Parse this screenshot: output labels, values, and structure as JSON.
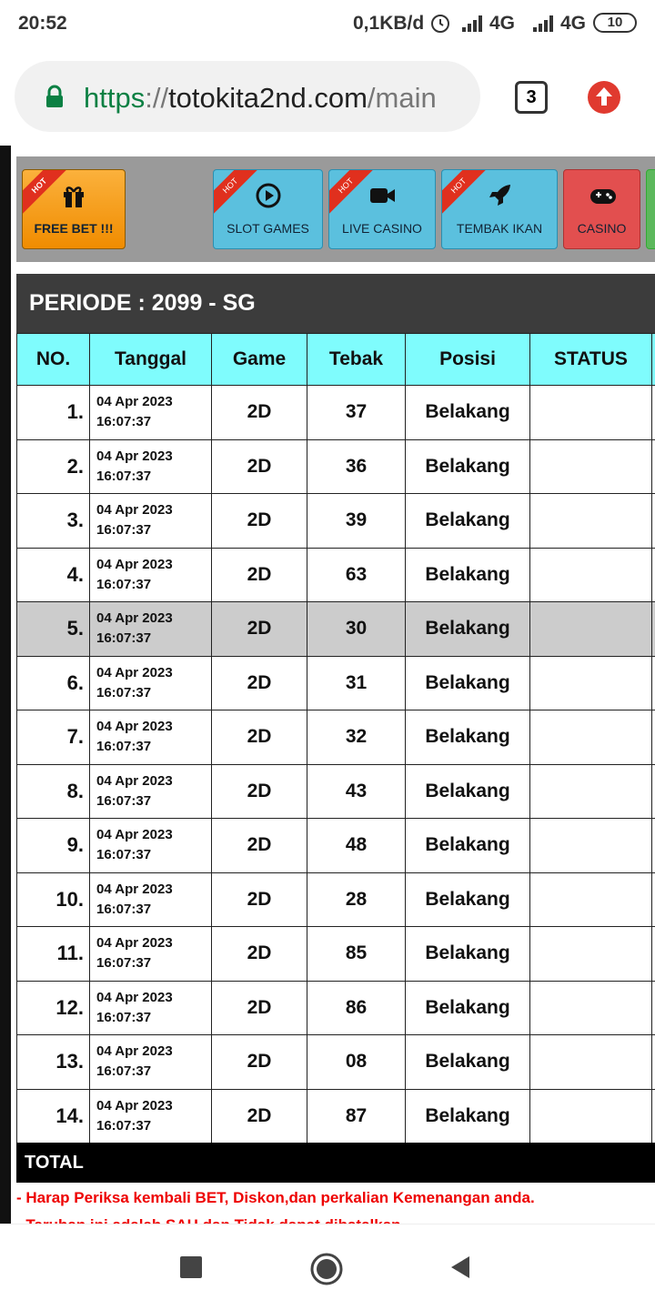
{
  "status_bar": {
    "time": "20:52",
    "speed": "0,1KB/d",
    "network_1": "4G",
    "network_2": "4G",
    "battery": "10"
  },
  "browser": {
    "url_scheme": "https",
    "url_separator": "://",
    "url_host": "totokita2nd.com",
    "url_path": "/main",
    "tab_count": "3"
  },
  "nav": {
    "badge": "HOT",
    "buttons": [
      {
        "label": "FREE BET !!!",
        "hot": true
      },
      {
        "label": "SLOT GAMES",
        "hot": true
      },
      {
        "label": "LIVE CASINO",
        "hot": true
      },
      {
        "label": "TEMBAK IKAN",
        "hot": true
      },
      {
        "label": "CASINO",
        "hot": false
      }
    ]
  },
  "table": {
    "title": "PERIODE : 2099 - SG",
    "headers": [
      "NO.",
      "Tanggal",
      "Game",
      "Tebak",
      "Posisi",
      "STATUS"
    ],
    "rows": [
      {
        "no": "1.",
        "date": "04 Apr 2023",
        "time": "16:07:37",
        "game": "2D",
        "tebak": "37",
        "posisi": "Belakang"
      },
      {
        "no": "2.",
        "date": "04 Apr 2023",
        "time": "16:07:37",
        "game": "2D",
        "tebak": "36",
        "posisi": "Belakang"
      },
      {
        "no": "3.",
        "date": "04 Apr 2023",
        "time": "16:07:37",
        "game": "2D",
        "tebak": "39",
        "posisi": "Belakang"
      },
      {
        "no": "4.",
        "date": "04 Apr 2023",
        "time": "16:07:37",
        "game": "2D",
        "tebak": "63",
        "posisi": "Belakang"
      },
      {
        "no": "5.",
        "date": "04 Apr 2023",
        "time": "16:07:37",
        "game": "2D",
        "tebak": "30",
        "posisi": "Belakang"
      },
      {
        "no": "6.",
        "date": "04 Apr 2023",
        "time": "16:07:37",
        "game": "2D",
        "tebak": "31",
        "posisi": "Belakang"
      },
      {
        "no": "7.",
        "date": "04 Apr 2023",
        "time": "16:07:37",
        "game": "2D",
        "tebak": "32",
        "posisi": "Belakang"
      },
      {
        "no": "8.",
        "date": "04 Apr 2023",
        "time": "16:07:37",
        "game": "2D",
        "tebak": "43",
        "posisi": "Belakang"
      },
      {
        "no": "9.",
        "date": "04 Apr 2023",
        "time": "16:07:37",
        "game": "2D",
        "tebak": "48",
        "posisi": "Belakang"
      },
      {
        "no": "10.",
        "date": "04 Apr 2023",
        "time": "16:07:37",
        "game": "2D",
        "tebak": "28",
        "posisi": "Belakang"
      },
      {
        "no": "11.",
        "date": "04 Apr 2023",
        "time": "16:07:37",
        "game": "2D",
        "tebak": "85",
        "posisi": "Belakang"
      },
      {
        "no": "12.",
        "date": "04 Apr 2023",
        "time": "16:07:37",
        "game": "2D",
        "tebak": "86",
        "posisi": "Belakang"
      },
      {
        "no": "13.",
        "date": "04 Apr 2023",
        "time": "16:07:37",
        "game": "2D",
        "tebak": "08",
        "posisi": "Belakang"
      },
      {
        "no": "14.",
        "date": "04 Apr 2023",
        "time": "16:07:37",
        "game": "2D",
        "tebak": "87",
        "posisi": "Belakang"
      }
    ],
    "total_label": "TOTAL"
  },
  "notes": [
    "- Harap Periksa kembali BET, Diskon,dan perkalian Kemenangan anda.",
    "- Taruhan ini adalah SAH dan Tidak dapat dibatalkan"
  ]
}
